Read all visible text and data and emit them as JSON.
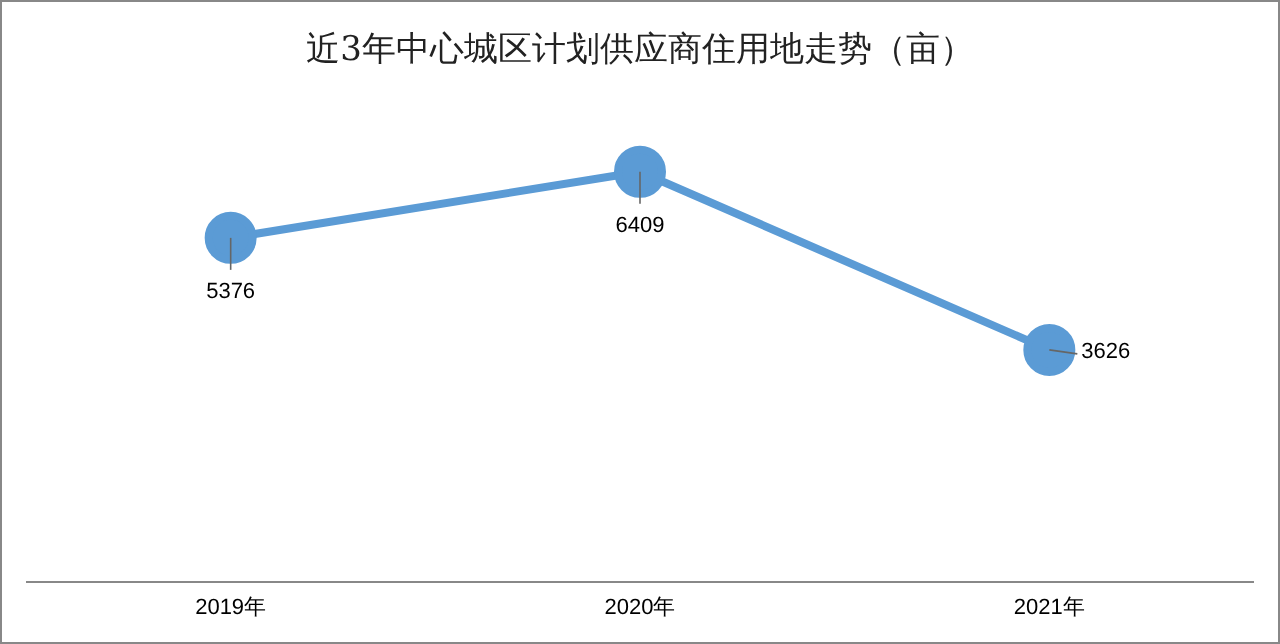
{
  "chart_data": {
    "type": "line",
    "title": "近3年中心城区计划供应商住用地走势（亩）",
    "categories": [
      "2019年",
      "2020年",
      "2021年"
    ],
    "series": [
      {
        "color": "#5b9bd5",
        "values": [
          5376,
          6409,
          3626
        ]
      }
    ],
    "data_labels": true,
    "marker": "circle",
    "tick_labels": "x"
  }
}
